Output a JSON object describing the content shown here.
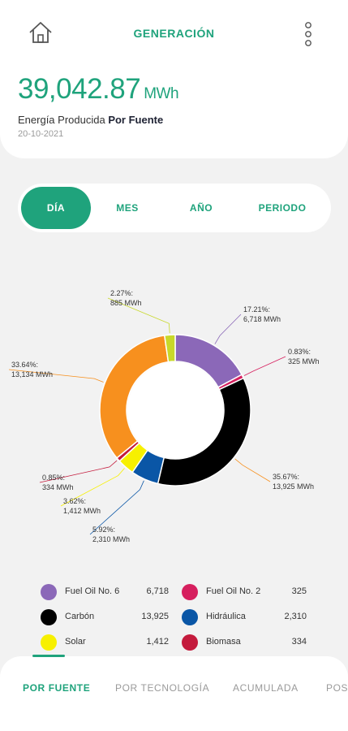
{
  "header": {
    "title": "GENERACIÓN"
  },
  "summary": {
    "total": "39,042.87",
    "unit": "MWh",
    "label_prefix": "Energía Producida",
    "label_strong": "Por Fuente",
    "date": "20-10-2021"
  },
  "period_tabs": [
    {
      "label": "DÍA",
      "active": true
    },
    {
      "label": "MES",
      "active": false
    },
    {
      "label": "AÑO",
      "active": false
    },
    {
      "label": "PERIODO",
      "active": false
    }
  ],
  "chart_data": {
    "type": "pie",
    "variant": "donut",
    "series": [
      {
        "name": "Fuel Oil No. 6",
        "value": 6718,
        "percent": "17.21%:",
        "label": "6,718 MWh",
        "color": "#8b68b8"
      },
      {
        "name": "Fuel Oil No. 2",
        "value": 325,
        "percent": "0.83%:",
        "label": "325 MWh",
        "color": "#d61f5e"
      },
      {
        "name": "Carbón",
        "value": 13925,
        "percent": "35.67%:",
        "label": "13,925 MWh",
        "color": "#000000"
      },
      {
        "name": "Hidráulica",
        "value": 2310,
        "percent": "5.92%:",
        "label": "2,310 MWh",
        "color": "#0a56a6"
      },
      {
        "name": "Solar",
        "value": 1412,
        "percent": "3.62%:",
        "label": "1,412 MWh",
        "color": "#f7f000"
      },
      {
        "name": "Biomasa",
        "value": 334,
        "percent": "0.85%:",
        "label": "334 MWh",
        "color": "#c41a3c"
      },
      {
        "name": "",
        "value": 13134,
        "percent": "33.64%:",
        "label": "13,134 MWh",
        "color": "#f7901e"
      },
      {
        "name": "",
        "value": 885,
        "percent": "2.27%:",
        "label": "885 MWh",
        "color": "#c8d82a"
      }
    ]
  },
  "legend": [
    {
      "name": "Fuel Oil No. 6",
      "value": "6,718",
      "color": "#8b68b8"
    },
    {
      "name": "Fuel Oil No. 2",
      "value": "325",
      "color": "#d61f5e"
    },
    {
      "name": "Carbón",
      "value": "13,925",
      "color": "#000000"
    },
    {
      "name": "Hidráulica",
      "value": "2,310",
      "color": "#0a56a6"
    },
    {
      "name": "Solar",
      "value": "1,412",
      "color": "#f7f000"
    },
    {
      "name": "Biomasa",
      "value": "334",
      "color": "#c41a3c"
    }
  ],
  "bottom_tabs": [
    {
      "label": "POR FUENTE",
      "active": true
    },
    {
      "label": "POR TECNOLOGÍA",
      "active": false
    },
    {
      "label": "ACUMULADA",
      "active": false
    },
    {
      "label": "POS",
      "active": false
    }
  ],
  "icons": {
    "home": "home-icon",
    "menu": "more-vertical-icon"
  },
  "colors": {
    "accent": "#1fa37c"
  }
}
